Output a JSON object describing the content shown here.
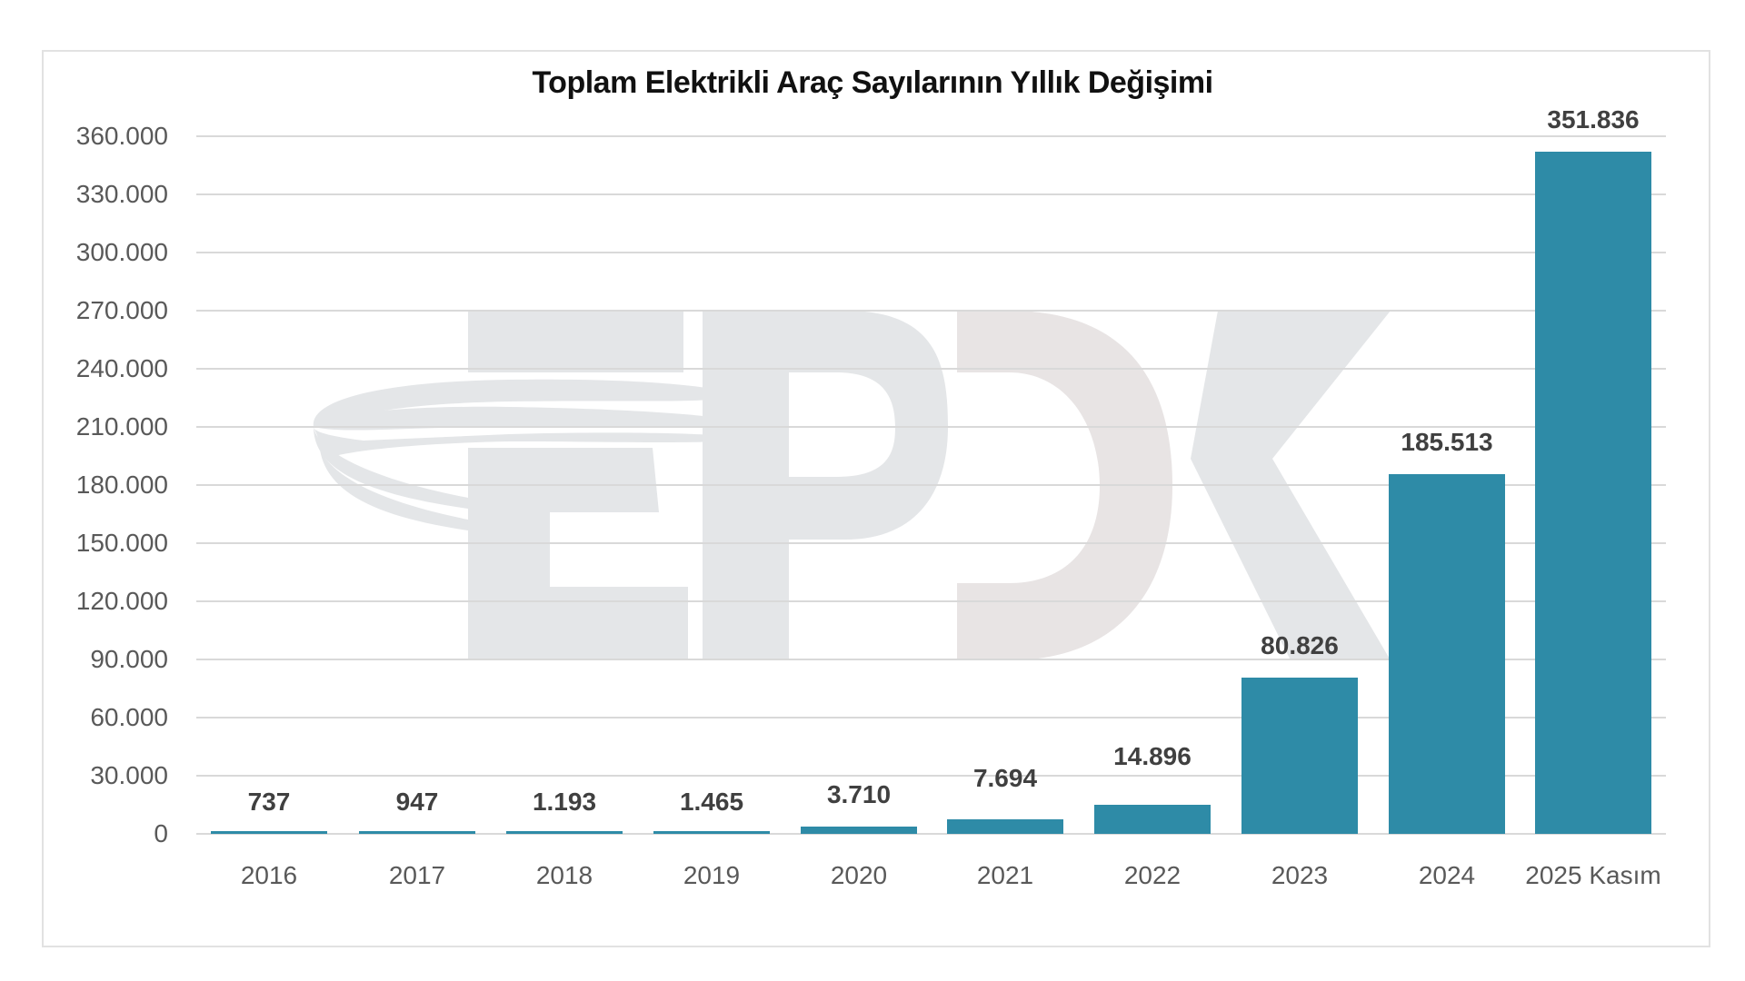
{
  "title": "Toplam Elektrikli Araç Sayılarının Yıllık Değişimi",
  "watermark": {
    "text": "EPDK",
    "icon": "epdk-logo-watermark"
  },
  "colors": {
    "bar": "#2e8ba7",
    "grid": "#d9d9d9",
    "watermark": "#e4e6e8",
    "text": "#595959",
    "label": "#404040"
  },
  "y_axis": {
    "ticks": [
      "0",
      "30.000",
      "60.000",
      "90.000",
      "120.000",
      "150.000",
      "180.000",
      "210.000",
      "240.000",
      "270.000",
      "300.000",
      "330.000",
      "360.000"
    ]
  },
  "x_axis": {
    "ticks": [
      "2016",
      "2017",
      "2018",
      "2019",
      "2020",
      "2021",
      "2022",
      "2023",
      "2024",
      "2025 Kasım"
    ]
  },
  "bars": [
    {
      "category": "2016",
      "value": 737,
      "label": "737"
    },
    {
      "category": "2017",
      "value": 947,
      "label": "947"
    },
    {
      "category": "2018",
      "value": 1193,
      "label": "1.193"
    },
    {
      "category": "2019",
      "value": 1465,
      "label": "1.465"
    },
    {
      "category": "2020",
      "value": 3710,
      "label": "3.710"
    },
    {
      "category": "2021",
      "value": 7694,
      "label": "7.694"
    },
    {
      "category": "2022",
      "value": 14896,
      "label": "14.896"
    },
    {
      "category": "2023",
      "value": 80826,
      "label": "80.826"
    },
    {
      "category": "2024",
      "value": 185513,
      "label": "185.513"
    },
    {
      "category": "2025 Kasım",
      "value": 351836,
      "label": "351.836"
    }
  ],
  "chart_data": {
    "type": "bar",
    "title": "Toplam Elektrikli Araç Sayılarının Yıllık Değişimi",
    "xlabel": "",
    "ylabel": "",
    "categories": [
      "2016",
      "2017",
      "2018",
      "2019",
      "2020",
      "2021",
      "2022",
      "2023",
      "2024",
      "2025 Kasım"
    ],
    "values": [
      737,
      947,
      1193,
      1465,
      3710,
      7694,
      14896,
      80826,
      185513,
      351836
    ],
    "data_labels": [
      "737",
      "947",
      "1.193",
      "1.465",
      "3.710",
      "7.694",
      "14.896",
      "80.826",
      "185.513",
      "351.836"
    ],
    "ylim": [
      0,
      360000
    ],
    "ytick_step": 30000,
    "grid": true,
    "legend": null,
    "bar_color": "#2e8ba7",
    "annotations": [
      "EPDK watermark logo"
    ]
  }
}
